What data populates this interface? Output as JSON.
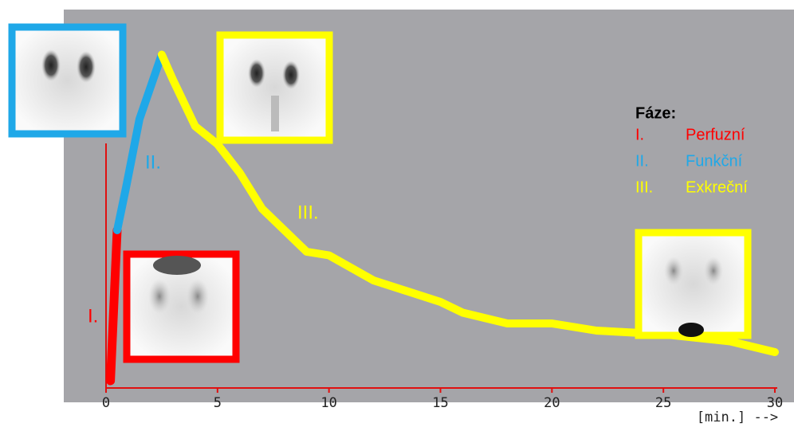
{
  "chart_data": {
    "type": "line",
    "x_label": "[min.] -->",
    "xlim": [
      0,
      30
    ],
    "xticks": [
      0,
      5,
      10,
      15,
      20,
      25,
      30
    ],
    "ylim": [
      0,
      100
    ],
    "legend_title": "Fáze:",
    "series": [
      {
        "name": "Perfuzní",
        "phase": "I.",
        "color": "#ff0000",
        "x": [
          0.2,
          0.5
        ],
        "values": [
          2,
          44
        ]
      },
      {
        "name": "Funkční",
        "phase": "II.",
        "color": "#1fa8e8",
        "x": [
          0.5,
          0.9,
          1.5,
          2.5
        ],
        "values": [
          44,
          56,
          75,
          93
        ]
      },
      {
        "name": "Exkreční",
        "phase": "III.",
        "color": "#ffff00",
        "x": [
          2.5,
          3,
          4,
          5,
          6,
          7,
          8,
          9,
          10,
          12,
          13,
          15,
          16,
          18,
          20,
          22,
          25,
          28,
          30
        ],
        "values": [
          93,
          86,
          73,
          68,
          60,
          50,
          44,
          38,
          37,
          30,
          28,
          24,
          21,
          18,
          18,
          16,
          15,
          13,
          10
        ]
      }
    ]
  }
}
